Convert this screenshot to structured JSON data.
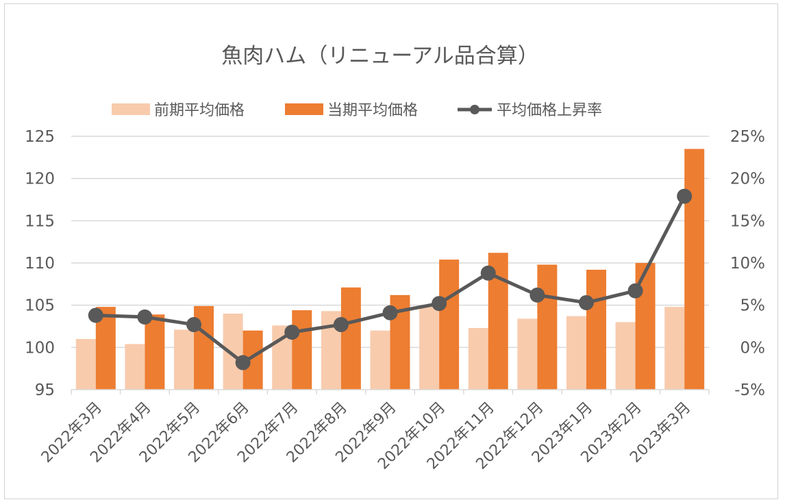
{
  "chart_data": {
    "type": "bar",
    "title": "魚肉ハム（リニューアル品合算）",
    "categories": [
      "2022年3月",
      "2022年4月",
      "2022年5月",
      "2022年6月",
      "2022年7月",
      "2022年8月",
      "2022年9月",
      "2022年10月",
      "2022年11月",
      "2022年12月",
      "2023年1月",
      "2023年2月",
      "2023年3月"
    ],
    "series": [
      {
        "name": "前期平均価格",
        "type": "bar",
        "axis": "left",
        "color": "#F8CBAD",
        "values": [
          101.0,
          100.4,
          102.1,
          104.0,
          102.6,
          104.3,
          102.0,
          105.0,
          102.3,
          103.4,
          103.7,
          103.0,
          104.8
        ]
      },
      {
        "name": "当期平均価格",
        "type": "bar",
        "axis": "left",
        "color": "#ED7D31",
        "values": [
          104.8,
          103.9,
          104.9,
          102.0,
          104.4,
          107.1,
          106.2,
          110.4,
          111.2,
          109.8,
          109.2,
          110.0,
          123.5
        ]
      },
      {
        "name": "平均価格上昇率",
        "type": "line",
        "axis": "right",
        "color": "#595959",
        "values": [
          3.8,
          3.6,
          2.7,
          -1.8,
          1.8,
          2.7,
          4.1,
          5.2,
          8.8,
          6.2,
          5.3,
          6.7,
          17.9
        ]
      }
    ],
    "y_left": {
      "min": 95,
      "max": 125,
      "step": 5,
      "ticks": [
        "95",
        "100",
        "105",
        "110",
        "115",
        "120",
        "125"
      ]
    },
    "y_right": {
      "min": -5,
      "max": 25,
      "step": 5,
      "ticks": [
        "-5%",
        "0%",
        "5%",
        "10%",
        "15%",
        "20%",
        "25%"
      ]
    },
    "grid": true,
    "legend_position": "top"
  }
}
